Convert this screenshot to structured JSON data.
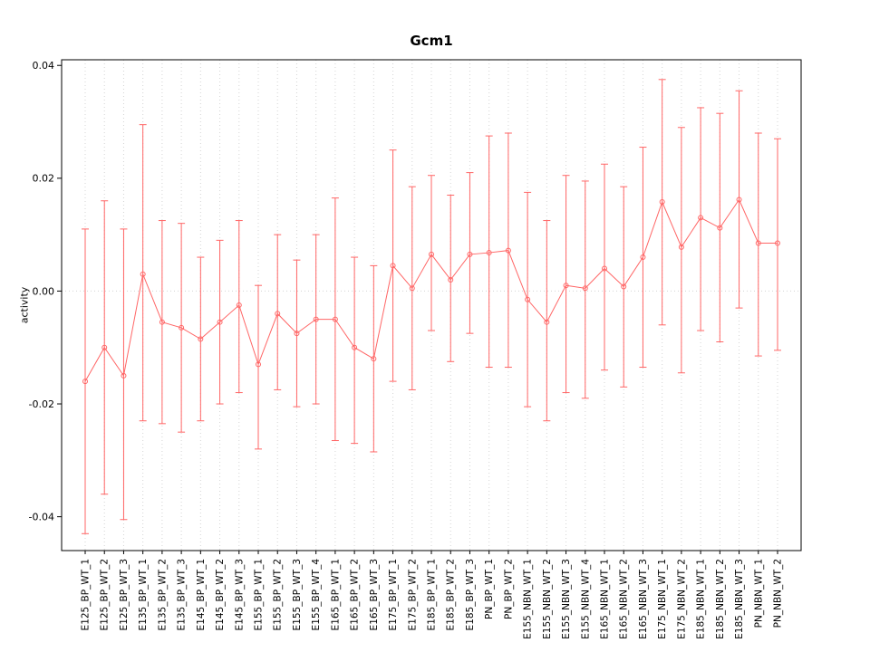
{
  "figure": {
    "title": "Gcm1",
    "ylabel": "activity"
  },
  "chart_data": {
    "type": "line",
    "title": "Gcm1",
    "subtitle": "",
    "xlabel": "",
    "ylabel": "activity",
    "ylim": [
      -0.046,
      0.041
    ],
    "yticks": [
      -0.04,
      -0.02,
      0,
      0.02,
      0.04
    ],
    "ytick_labels": [
      "-0.04",
      "-0.02",
      "0.00",
      "0.02",
      "0.04"
    ],
    "grid": "dotted vertical gridline at each category; dotted horizontal line at y=0",
    "legend": "none",
    "series_name": "activity with confidence interval",
    "series_color": "#ff6666",
    "grid_color": "#d4d4d4",
    "axis_color": "#000000",
    "marker": "open-circle",
    "categories": [
      "E125_BP_WT_1",
      "E125_BP_WT_2",
      "E125_BP_WT_3",
      "E135_BP_WT_1",
      "E135_BP_WT_2",
      "E135_BP_WT_3",
      "E145_BP_WT_1",
      "E145_BP_WT_2",
      "E145_BP_WT_3",
      "E155_BP_WT_1",
      "E155_BP_WT_2",
      "E155_BP_WT_3",
      "E155_BP_WT_4",
      "E165_BP_WT_1",
      "E165_BP_WT_2",
      "E165_BP_WT_3",
      "E175_BP_WT_1",
      "E175_BP_WT_2",
      "E185_BP_WT_1",
      "E185_BP_WT_2",
      "E185_BP_WT_3",
      "PN_BP_WT_1",
      "PN_BP_WT_2",
      "E155_NBN_WT_1",
      "E155_NBN_WT_2",
      "E155_NBN_WT_3",
      "E155_NBN_WT_4",
      "E165_NBN_WT_1",
      "E165_NBN_WT_2",
      "E165_NBN_WT_3",
      "E175_NBN_WT_1",
      "E175_NBN_WT_2",
      "E185_NBN_WT_1",
      "E185_NBN_WT_2",
      "E185_NBN_WT_3",
      "PN_NBN_WT_1",
      "PN_NBN_WT_2"
    ],
    "values": [
      -0.016,
      -0.01,
      -0.015,
      0.003,
      -0.0055,
      -0.0065,
      -0.0085,
      -0.0055,
      -0.0025,
      -0.013,
      -0.004,
      -0.0075,
      -0.005,
      -0.005,
      -0.01,
      -0.012,
      0.0045,
      0.0005,
      0.0065,
      0.002,
      0.0065,
      0.0068,
      0.0072,
      -0.0015,
      -0.0055,
      0.001,
      0.0005,
      0.004,
      0.0008,
      0.006,
      0.0158,
      0.0078,
      0.013,
      0.0112,
      0.0162,
      0.0085,
      0.0085
    ],
    "lower": [
      -0.043,
      -0.036,
      -0.0405,
      -0.023,
      -0.0235,
      -0.025,
      -0.023,
      -0.02,
      -0.018,
      -0.028,
      -0.0175,
      -0.0205,
      -0.02,
      -0.0265,
      -0.027,
      -0.0285,
      -0.016,
      -0.0175,
      -0.007,
      -0.0125,
      -0.0075,
      -0.0135,
      -0.0135,
      -0.0205,
      -0.023,
      -0.018,
      -0.019,
      -0.014,
      -0.017,
      -0.0135,
      -0.006,
      -0.0145,
      -0.007,
      -0.009,
      -0.003,
      -0.0115,
      -0.0105
    ],
    "upper": [
      0.011,
      0.016,
      0.011,
      0.0295,
      0.0125,
      0.012,
      0.006,
      0.009,
      0.0125,
      0.001,
      0.01,
      0.0055,
      0.01,
      0.0165,
      0.006,
      0.0045,
      0.025,
      0.0185,
      0.0205,
      0.017,
      0.021,
      0.0275,
      0.028,
      0.0175,
      0.0125,
      0.0205,
      0.0195,
      0.0225,
      0.0185,
      0.0255,
      0.0375,
      0.029,
      0.0325,
      0.0315,
      0.0355,
      0.028,
      0.027
    ]
  }
}
